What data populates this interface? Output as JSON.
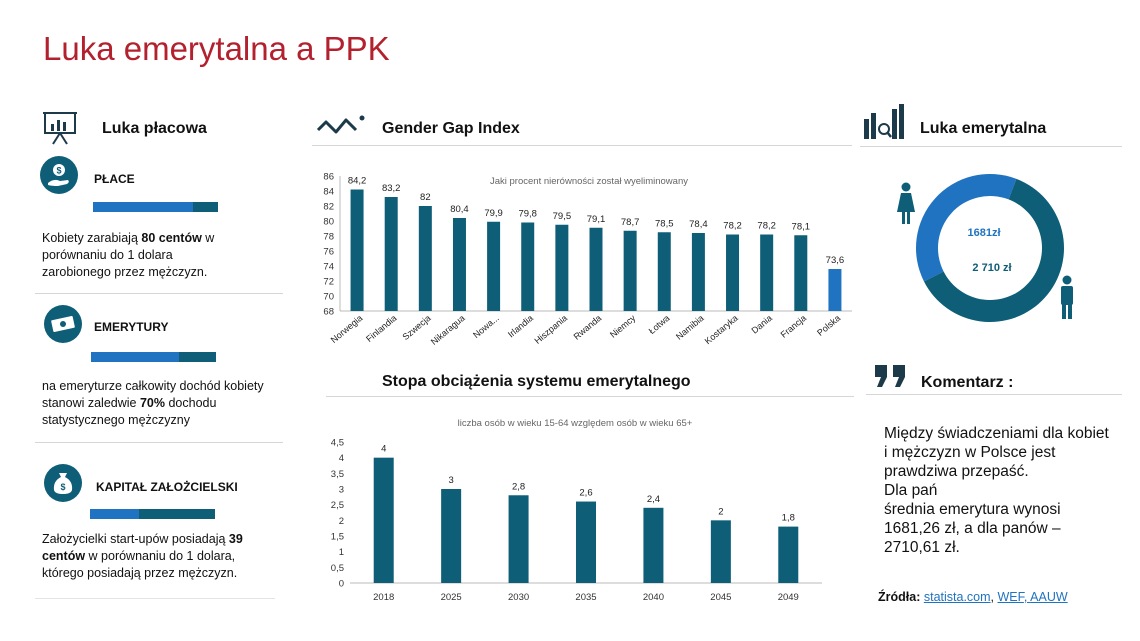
{
  "title": "Luka emerytalna a PPK",
  "left": {
    "heading": "Luka płacowa",
    "items": [
      {
        "label": "PŁACE",
        "bar": {
          "primary": 0.8
        },
        "text_parts": [
          "Kobiety zarabiają ",
          "80 centów",
          " w porównaniu do 1 dolara zarobionego przez mężczyzn."
        ]
      },
      {
        "label": "EMERYTURY",
        "bar": {
          "primary": 0.7
        },
        "text_parts": [
          "na emeryturze całkowity dochód kobiety stanowi zaledwie ",
          "70%",
          " dochodu statystycznego mężczyzny"
        ]
      },
      {
        "label": "KAPITAŁ ZAŁOŻCIELSKI",
        "bar": {
          "primary": 0.39
        },
        "text_parts": [
          "Założycielki start-upów posiadają ",
          "39 centów",
          " w porównaniu do 1 dolara, którego posiadają przez mężczyzn."
        ]
      }
    ]
  },
  "middle": {
    "gender_gap_heading": "Gender Gap Index",
    "dependency_heading": "Stopa obciążenia systemu emerytalnego"
  },
  "right": {
    "heading": "Luka emerytalna",
    "donut": {
      "women_value": 1681,
      "men_value": 2710,
      "women_label": "1681zł",
      "men_label": "2 710 zł",
      "colors": {
        "women": "#1f73c0",
        "men": "#0e5e78"
      }
    },
    "comment_heading": "Komentarz :",
    "comment_text": "Między świadczeniami dla kobiet\ni mężczyzn w Polsce jest\nprawdziwa przepaść.\nDla pań\nśrednia emerytura wynosi\n1681,26 zł, a dla panów –\n2710,61 zł.",
    "sources_label": "Źródła:",
    "sources": [
      "statista.com",
      "WEF",
      "AAUW"
    ]
  },
  "colors": {
    "title": "#b3202e",
    "dark": "#0e5e78",
    "blue": "#1f73c0"
  },
  "chart_data": [
    {
      "type": "bar",
      "title": "Jaki procent nierówności został wyeliminowany",
      "categories": [
        "Norwegia",
        "Finlandia",
        "Szwecja",
        "Nikaragua",
        "Nowa...",
        "Irlandia",
        "Hiszpania",
        "Rwanda",
        "Niemcy",
        "Łotwa",
        "Namibia",
        "Kostaryka",
        "Dania",
        "Francja",
        "Polska"
      ],
      "values": [
        84.2,
        83.2,
        82,
        80.4,
        79.9,
        79.8,
        79.5,
        79.1,
        78.7,
        78.5,
        78.4,
        78.2,
        78.2,
        78.1,
        73.6
      ],
      "value_labels": [
        "84,2",
        "83,2",
        "82",
        "80,4",
        "79,9",
        "79,8",
        "79,5",
        "79,1",
        "78,7",
        "78,5",
        "78,4",
        "78,2",
        "78,2",
        "78,1",
        "73,6"
      ],
      "highlight": "Polska",
      "ylim": [
        68,
        86
      ],
      "yticks": [
        "68",
        "70",
        "72",
        "74",
        "76",
        "78",
        "80",
        "82",
        "84",
        "86"
      ]
    },
    {
      "type": "bar",
      "title": "liczba osób w wieku 15-64 względem osób w wieku 65+",
      "categories": [
        "2018",
        "2025",
        "2030",
        "2035",
        "2040",
        "2045",
        "2049"
      ],
      "values": [
        4,
        3,
        2.8,
        2.6,
        2.4,
        2,
        1.8
      ],
      "value_labels": [
        "4",
        "3",
        "2,8",
        "2,6",
        "2,4",
        "2",
        "1,8"
      ],
      "ylim": [
        0,
        4.5
      ],
      "yticks": [
        "0",
        "0,5",
        "1",
        "1,5",
        "2",
        "2,5",
        "3",
        "3,5",
        "4",
        "4,5"
      ]
    }
  ]
}
